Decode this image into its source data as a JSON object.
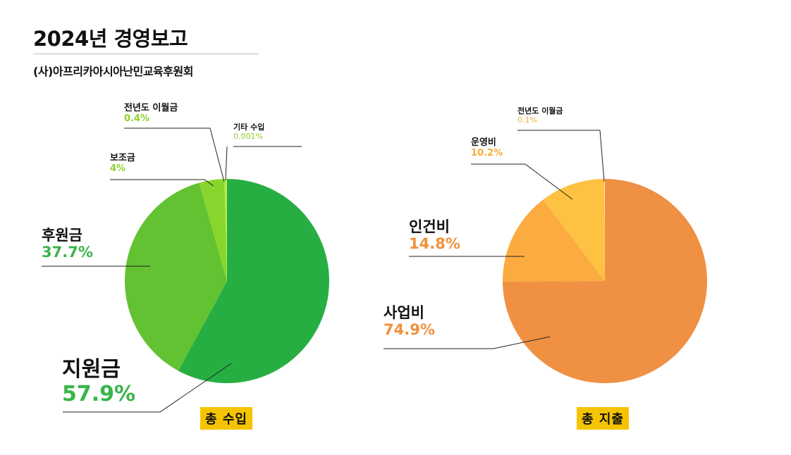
{
  "report": {
    "title": "2024년 경영보고",
    "subtitle": "(사)아프리카아시아난민교육후원회"
  },
  "colors": {
    "income_pct": "#39b54a",
    "income_pct_small": "#8dd12d",
    "expense_pct": "#f0913c",
    "expense_pct_small": "#f5ad37",
    "badge": "#f5c400"
  },
  "chart_data": [
    {
      "type": "pie",
      "title": "총 수입",
      "slices": [
        {
          "label": "지원금",
          "value": 57.9,
          "pct_text": "57.9%",
          "color": "#27ae42"
        },
        {
          "label": "후원금",
          "value": 37.7,
          "pct_text": "37.7%",
          "color": "#62c232"
        },
        {
          "label": "보조금",
          "value": 4,
          "pct_text": "4%",
          "color": "#88d62d"
        },
        {
          "label": "전년도 이월금",
          "value": 0.4,
          "pct_text": "0.4%",
          "color": "#b3ec4a"
        },
        {
          "label": "기타 수입",
          "value": 0.001,
          "pct_text": "0.001%",
          "color": "#d5f58a"
        }
      ]
    },
    {
      "type": "pie",
      "title": "총 지출",
      "slices": [
        {
          "label": "사업비",
          "value": 74.9,
          "pct_text": "74.9%",
          "color": "#ef9043"
        },
        {
          "label": "인건비",
          "value": 14.8,
          "pct_text": "14.8%",
          "color": "#fbab40"
        },
        {
          "label": "운영비",
          "value": 10.2,
          "pct_text": "10.2%",
          "color": "#fec242"
        },
        {
          "label": "전년도 이월금",
          "value": 0.1,
          "pct_text": "0.1%",
          "color": "#fde3a0"
        }
      ]
    }
  ]
}
